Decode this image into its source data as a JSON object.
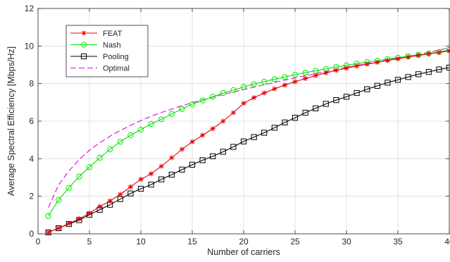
{
  "chart_data": {
    "type": "line",
    "xlabel": "Number of carriers",
    "ylabel": "Average Spectral Efficiency [Mbps/Hz]",
    "xlim": [
      0,
      40
    ],
    "ylim": [
      0,
      12
    ],
    "xticks": [
      0,
      5,
      10,
      15,
      20,
      25,
      30,
      35,
      40
    ],
    "yticks": [
      0,
      2,
      4,
      6,
      8,
      10,
      12
    ],
    "grid": true,
    "legend_position": "top-left",
    "x": [
      1,
      2,
      3,
      4,
      5,
      6,
      7,
      8,
      9,
      10,
      11,
      12,
      13,
      14,
      15,
      16,
      17,
      18,
      19,
      20,
      21,
      22,
      23,
      24,
      25,
      26,
      27,
      28,
      29,
      30,
      31,
      32,
      33,
      34,
      35,
      36,
      37,
      38,
      39,
      40
    ],
    "series": [
      {
        "name": "FEAT",
        "color": "#e60000",
        "marker": "asterisk",
        "dash": "solid",
        "values": [
          0.08,
          0.3,
          0.55,
          0.8,
          1.1,
          1.45,
          1.75,
          2.1,
          2.5,
          2.9,
          3.2,
          3.6,
          4.05,
          4.5,
          4.9,
          5.25,
          5.6,
          6.0,
          6.45,
          6.95,
          7.25,
          7.5,
          7.72,
          7.92,
          8.1,
          8.27,
          8.43,
          8.57,
          8.7,
          8.82,
          8.93,
          9.03,
          9.13,
          9.23,
          9.32,
          9.41,
          9.5,
          9.58,
          9.66,
          9.74
        ]
      },
      {
        "name": "Nash",
        "color": "#00e600",
        "marker": "circle",
        "dash": "solid",
        "values": [
          0.95,
          1.8,
          2.45,
          3.05,
          3.55,
          4.05,
          4.5,
          4.9,
          5.25,
          5.55,
          5.85,
          6.1,
          6.38,
          6.65,
          6.9,
          7.1,
          7.3,
          7.5,
          7.65,
          7.82,
          7.97,
          8.1,
          8.23,
          8.35,
          8.47,
          8.58,
          8.68,
          8.78,
          8.88,
          8.97,
          9.06,
          9.14,
          9.22,
          9.3,
          9.38,
          9.46,
          9.53,
          9.6,
          9.68,
          9.8
        ]
      },
      {
        "name": "Pooling",
        "color": "#000000",
        "marker": "square",
        "dash": "solid",
        "values": [
          0.08,
          0.3,
          0.52,
          0.73,
          1.02,
          1.28,
          1.55,
          1.85,
          2.15,
          2.4,
          2.62,
          2.9,
          3.15,
          3.42,
          3.68,
          3.92,
          4.13,
          4.37,
          4.63,
          4.92,
          5.15,
          5.38,
          5.65,
          5.93,
          6.18,
          6.45,
          6.68,
          6.92,
          7.12,
          7.3,
          7.5,
          7.7,
          7.88,
          8.05,
          8.2,
          8.35,
          8.5,
          8.62,
          8.75,
          8.85
        ]
      },
      {
        "name": "Optimal",
        "color": "#e600e6",
        "marker": "none",
        "dash": "dashed",
        "values": [
          1.4,
          2.6,
          3.35,
          3.95,
          4.45,
          4.85,
          5.2,
          5.5,
          5.78,
          6.03,
          6.26,
          6.46,
          6.64,
          6.82,
          6.98,
          7.13,
          7.27,
          7.42,
          7.55,
          7.68,
          7.81,
          7.94,
          8.06,
          8.18,
          8.3,
          8.42,
          8.53,
          8.64,
          8.75,
          8.86,
          8.96,
          9.06,
          9.16,
          9.26,
          9.36,
          9.46,
          9.56,
          9.66,
          9.78,
          9.92
        ]
      }
    ]
  }
}
